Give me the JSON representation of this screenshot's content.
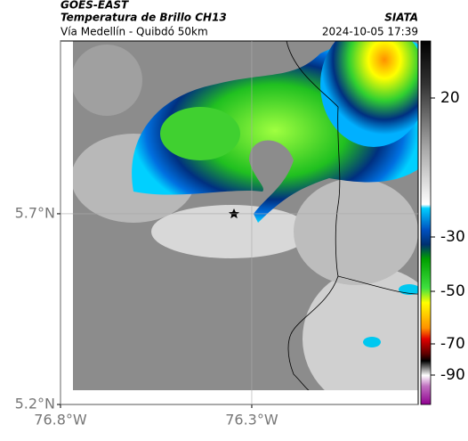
{
  "header": {
    "source": "GOES-EAST",
    "title": "Temperatura de Brillo CH13",
    "agency": "SIATA",
    "subtitle": "Vía Medellín - Quibdó 50km",
    "datetime": "2024-10-05 17:39"
  },
  "map": {
    "xlim": [
      -76.8,
      -75.865
    ],
    "ylim": [
      5.2,
      6.153
    ],
    "xticks": [
      {
        "value": -76.8,
        "label": "76.8°W"
      },
      {
        "value": -76.3,
        "label": "76.3°W"
      }
    ],
    "yticks": [
      {
        "value": 5.7,
        "label": "5.7°N"
      },
      {
        "value": 5.2,
        "label": "5.2°N"
      }
    ],
    "grid": true
  },
  "colorbar": {
    "ticks": [
      20,
      -30,
      -50,
      -70,
      -90
    ]
  }
}
